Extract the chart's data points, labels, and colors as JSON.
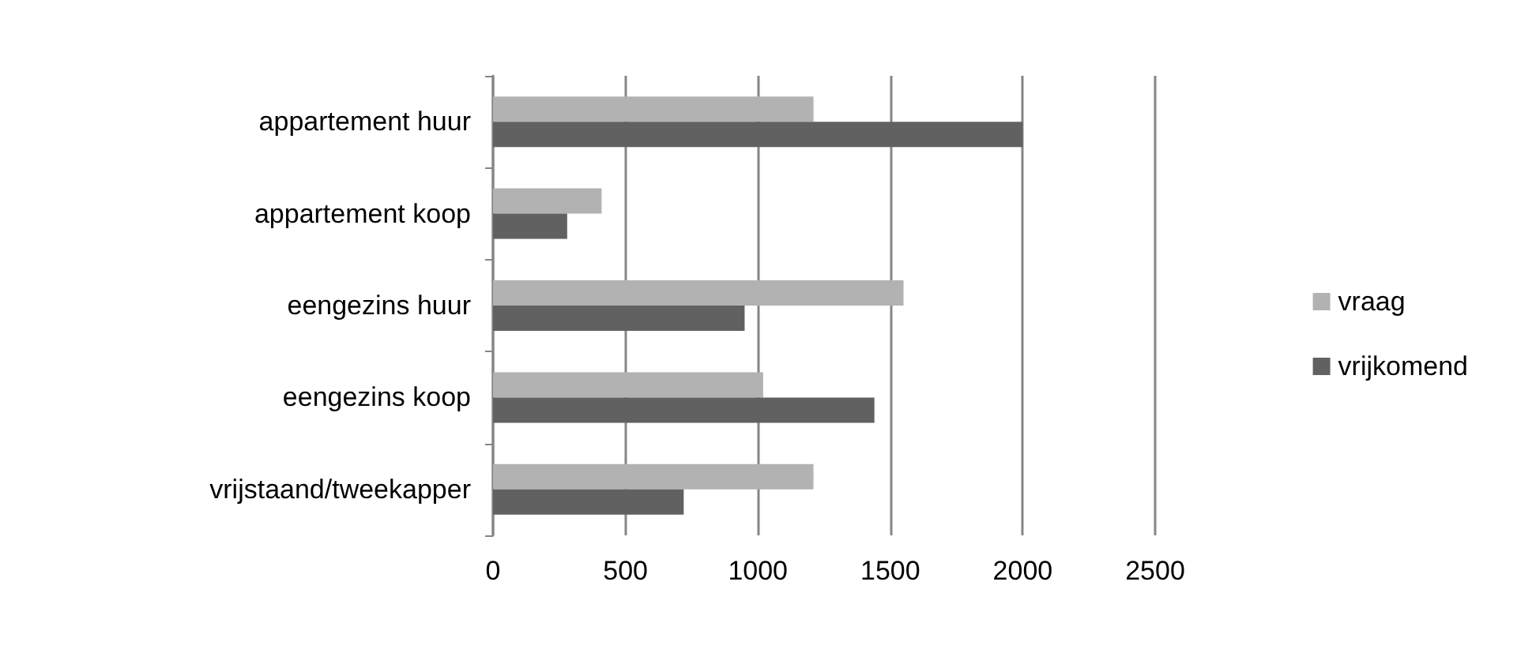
{
  "chart_data": {
    "type": "bar",
    "orientation": "horizontal",
    "categories": [
      "appartement huur",
      "appartement koop",
      "eengezins huur",
      "eengezins koop",
      "vrijstaand/tweekapper"
    ],
    "series": [
      {
        "name": "vraag",
        "color": "#b2b2b2",
        "values": [
          1210,
          410,
          1550,
          1020,
          1210
        ]
      },
      {
        "name": "vrijkomend",
        "color": "#616161",
        "values": [
          2000,
          280,
          950,
          1440,
          720
        ]
      }
    ],
    "xlim": [
      0,
      2500
    ],
    "xticks": [
      0,
      500,
      1000,
      1500,
      2000,
      2500
    ],
    "grid": "x",
    "legend": "right"
  }
}
